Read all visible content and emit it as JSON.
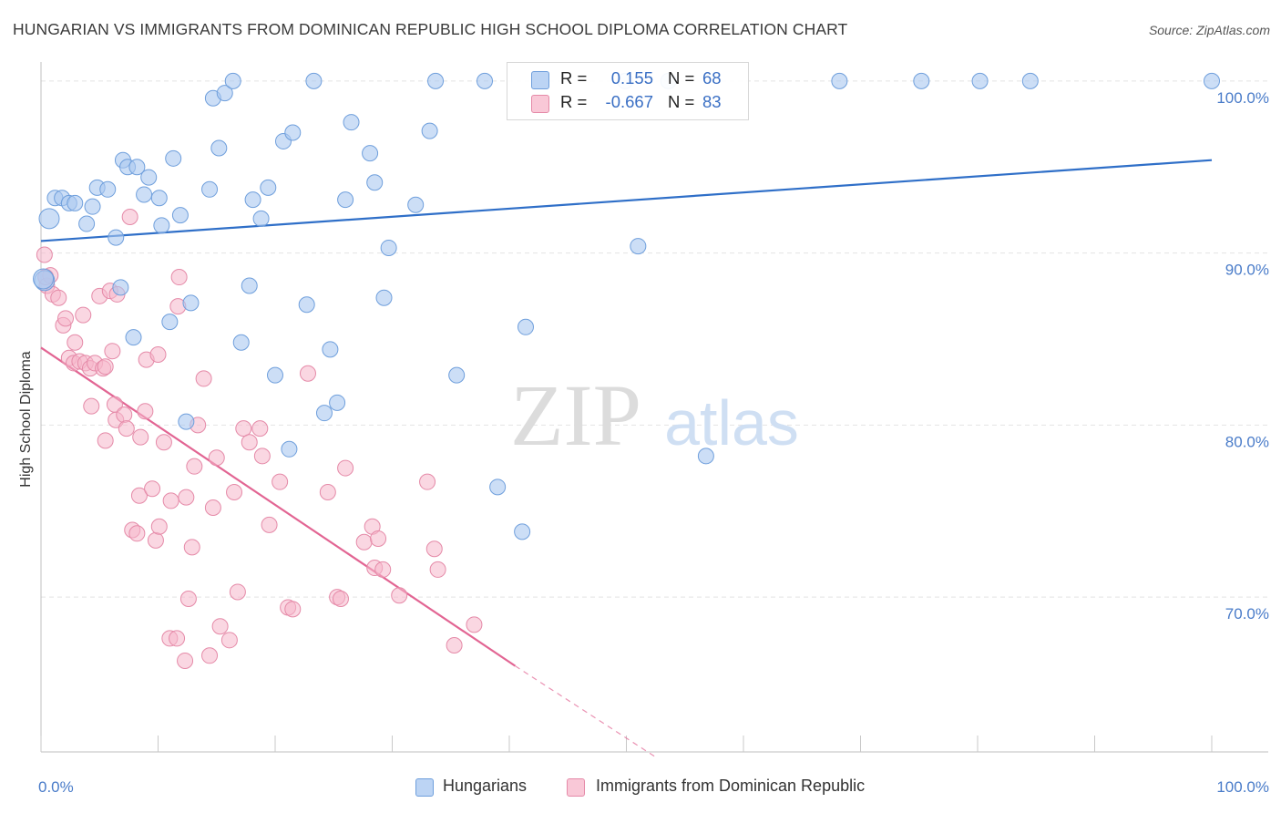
{
  "title": "HUNGARIAN VS IMMIGRANTS FROM DOMINICAN REPUBLIC HIGH SCHOOL DIPLOMA CORRELATION CHART",
  "source": "Source: ZipAtlas.com",
  "watermark": {
    "zip": "ZIP",
    "atlas": "atlas"
  },
  "legend": {
    "series1": {
      "r_label": "R =",
      "r_value": "0.155",
      "n_label": "N =",
      "n_value": "68"
    },
    "series2": {
      "r_label": "R =",
      "r_value": "-0.667",
      "n_label": "N =",
      "n_value": "83"
    }
  },
  "bottom_legend": {
    "series1": "Hungarians",
    "series2": "Immigrants from Dominican Republic"
  },
  "colors": {
    "blue_fill": "#aac8f0",
    "blue_stroke": "#6f9fdc",
    "blue_line": "#2f6fc8",
    "pink_fill": "#f6b7ca",
    "pink_stroke": "#e58aa8",
    "pink_line": "#e26593",
    "tick_text": "#4a7cc9",
    "grid": "#e3e3e3"
  },
  "chart_data": {
    "type": "scatter",
    "title": "HUNGARIAN VS IMMIGRANTS FROM DOMINICAN REPUBLIC HIGH SCHOOL DIPLOMA CORRELATION CHART",
    "xlabel": "",
    "ylabel": "High School Diploma",
    "xlim": [
      0,
      100
    ],
    "ylim": [
      61,
      101
    ],
    "x_tick_labels": [
      "0.0%",
      "100.0%"
    ],
    "y_ticks": [
      70,
      80,
      90,
      100
    ],
    "y_tick_labels": [
      "70.0%",
      "80.0%",
      "90.0%",
      "100.0%"
    ],
    "grid": true,
    "legend_position": "top-center",
    "series": [
      {
        "name": "Hungarians",
        "r": 0.155,
        "n": 68,
        "trend": {
          "x": [
            0,
            100
          ],
          "y": [
            90.7,
            95.4
          ],
          "style": "solid"
        },
        "points": [
          [
            0.7,
            92.0
          ],
          [
            1.2,
            93.2
          ],
          [
            1.8,
            93.2
          ],
          [
            2.4,
            92.9
          ],
          [
            2.9,
            92.9
          ],
          [
            3.9,
            91.7
          ],
          [
            4.4,
            92.7
          ],
          [
            4.8,
            93.8
          ],
          [
            5.7,
            93.7
          ],
          [
            6.4,
            90.9
          ],
          [
            6.8,
            88.0
          ],
          [
            7.0,
            95.4
          ],
          [
            7.4,
            95.0
          ],
          [
            8.2,
            95.0
          ],
          [
            7.9,
            85.1
          ],
          [
            8.8,
            93.4
          ],
          [
            9.2,
            94.4
          ],
          [
            10.1,
            93.2
          ],
          [
            10.3,
            91.6
          ],
          [
            11.0,
            86.0
          ],
          [
            11.3,
            95.5
          ],
          [
            11.9,
            92.2
          ],
          [
            12.8,
            87.1
          ],
          [
            12.4,
            80.2
          ],
          [
            14.4,
            93.7
          ],
          [
            14.7,
            99.0
          ],
          [
            15.2,
            96.1
          ],
          [
            15.7,
            99.3
          ],
          [
            16.4,
            100.0
          ],
          [
            17.1,
            84.8
          ],
          [
            17.8,
            88.1
          ],
          [
            18.1,
            93.1
          ],
          [
            18.8,
            92.0
          ],
          [
            19.4,
            93.8
          ],
          [
            20.0,
            82.9
          ],
          [
            20.7,
            96.5
          ],
          [
            21.5,
            97.0
          ],
          [
            21.2,
            78.6
          ],
          [
            22.7,
            87.0
          ],
          [
            23.3,
            100.0
          ],
          [
            24.2,
            80.7
          ],
          [
            24.7,
            84.4
          ],
          [
            25.3,
            81.3
          ],
          [
            26.0,
            93.1
          ],
          [
            26.5,
            97.6
          ],
          [
            28.1,
            95.8
          ],
          [
            28.5,
            94.1
          ],
          [
            29.3,
            87.4
          ],
          [
            29.7,
            90.3
          ],
          [
            32.0,
            92.8
          ],
          [
            33.2,
            97.1
          ],
          [
            33.7,
            100.0
          ],
          [
            35.5,
            82.9
          ],
          [
            37.9,
            100.0
          ],
          [
            39.0,
            76.4
          ],
          [
            41.1,
            73.8
          ],
          [
            41.4,
            85.7
          ],
          [
            49.9,
            100.0
          ],
          [
            51.0,
            90.4
          ],
          [
            53.6,
            100.0
          ],
          [
            56.8,
            78.2
          ],
          [
            68.2,
            100.0
          ],
          [
            75.2,
            100.0
          ],
          [
            80.2,
            100.0
          ],
          [
            84.5,
            100.0
          ],
          [
            100.0,
            100.0
          ],
          [
            0.3,
            88.4
          ],
          [
            0.2,
            88.5
          ]
        ]
      },
      {
        "name": "Immigrants from Dominican Republic",
        "r": -0.667,
        "n": 83,
        "trend": {
          "x": [
            0,
            40.5
          ],
          "y": [
            84.5,
            66.0
          ],
          "style": "solid",
          "dashed_extension": {
            "x": [
              40.5,
              52.5
            ],
            "y": [
              66.0,
              60.7
            ]
          }
        },
        "points": [
          [
            0.3,
            89.9
          ],
          [
            0.5,
            88.1
          ],
          [
            0.8,
            88.7
          ],
          [
            1.0,
            87.6
          ],
          [
            1.5,
            87.4
          ],
          [
            1.9,
            85.8
          ],
          [
            2.1,
            86.2
          ],
          [
            2.4,
            83.9
          ],
          [
            2.8,
            83.6
          ],
          [
            2.9,
            84.8
          ],
          [
            3.3,
            83.7
          ],
          [
            3.6,
            86.4
          ],
          [
            3.8,
            83.6
          ],
          [
            4.2,
            83.3
          ],
          [
            4.3,
            81.1
          ],
          [
            4.6,
            83.6
          ],
          [
            5.0,
            87.5
          ],
          [
            5.3,
            83.3
          ],
          [
            5.5,
            83.4
          ],
          [
            5.5,
            79.1
          ],
          [
            5.9,
            87.8
          ],
          [
            6.1,
            84.3
          ],
          [
            6.3,
            81.2
          ],
          [
            6.4,
            80.3
          ],
          [
            6.5,
            87.6
          ],
          [
            7.1,
            80.6
          ],
          [
            7.3,
            79.8
          ],
          [
            7.6,
            92.1
          ],
          [
            7.8,
            73.9
          ],
          [
            8.2,
            73.7
          ],
          [
            8.4,
            75.9
          ],
          [
            8.5,
            79.3
          ],
          [
            8.9,
            80.8
          ],
          [
            9.0,
            83.8
          ],
          [
            9.5,
            76.3
          ],
          [
            9.8,
            73.3
          ],
          [
            10.0,
            84.1
          ],
          [
            10.1,
            74.1
          ],
          [
            10.5,
            79.0
          ],
          [
            11.1,
            75.6
          ],
          [
            11.0,
            67.6
          ],
          [
            11.6,
            67.6
          ],
          [
            11.7,
            86.9
          ],
          [
            11.8,
            88.6
          ],
          [
            12.3,
            66.3
          ],
          [
            12.4,
            75.8
          ],
          [
            12.6,
            69.9
          ],
          [
            12.9,
            72.9
          ],
          [
            13.1,
            77.6
          ],
          [
            13.4,
            80.0
          ],
          [
            13.9,
            82.7
          ],
          [
            14.4,
            66.6
          ],
          [
            14.7,
            75.2
          ],
          [
            15.0,
            78.1
          ],
          [
            15.3,
            68.3
          ],
          [
            16.1,
            67.5
          ],
          [
            16.5,
            76.1
          ],
          [
            16.8,
            70.3
          ],
          [
            17.3,
            79.8
          ],
          [
            17.8,
            79.0
          ],
          [
            18.7,
            79.8
          ],
          [
            18.9,
            78.2
          ],
          [
            19.5,
            74.2
          ],
          [
            20.4,
            76.7
          ],
          [
            21.1,
            69.4
          ],
          [
            21.5,
            69.3
          ],
          [
            22.8,
            83.0
          ],
          [
            24.5,
            76.1
          ],
          [
            25.3,
            70.0
          ],
          [
            25.6,
            69.9
          ],
          [
            26.0,
            77.5
          ],
          [
            27.6,
            73.2
          ],
          [
            28.3,
            74.1
          ],
          [
            28.5,
            71.7
          ],
          [
            28.8,
            73.4
          ],
          [
            29.2,
            71.6
          ],
          [
            30.6,
            70.1
          ],
          [
            33.0,
            76.7
          ],
          [
            33.6,
            72.8
          ],
          [
            33.9,
            71.6
          ],
          [
            35.3,
            67.2
          ],
          [
            37.0,
            68.4
          ],
          [
            0.4,
            88.6
          ]
        ]
      }
    ]
  }
}
